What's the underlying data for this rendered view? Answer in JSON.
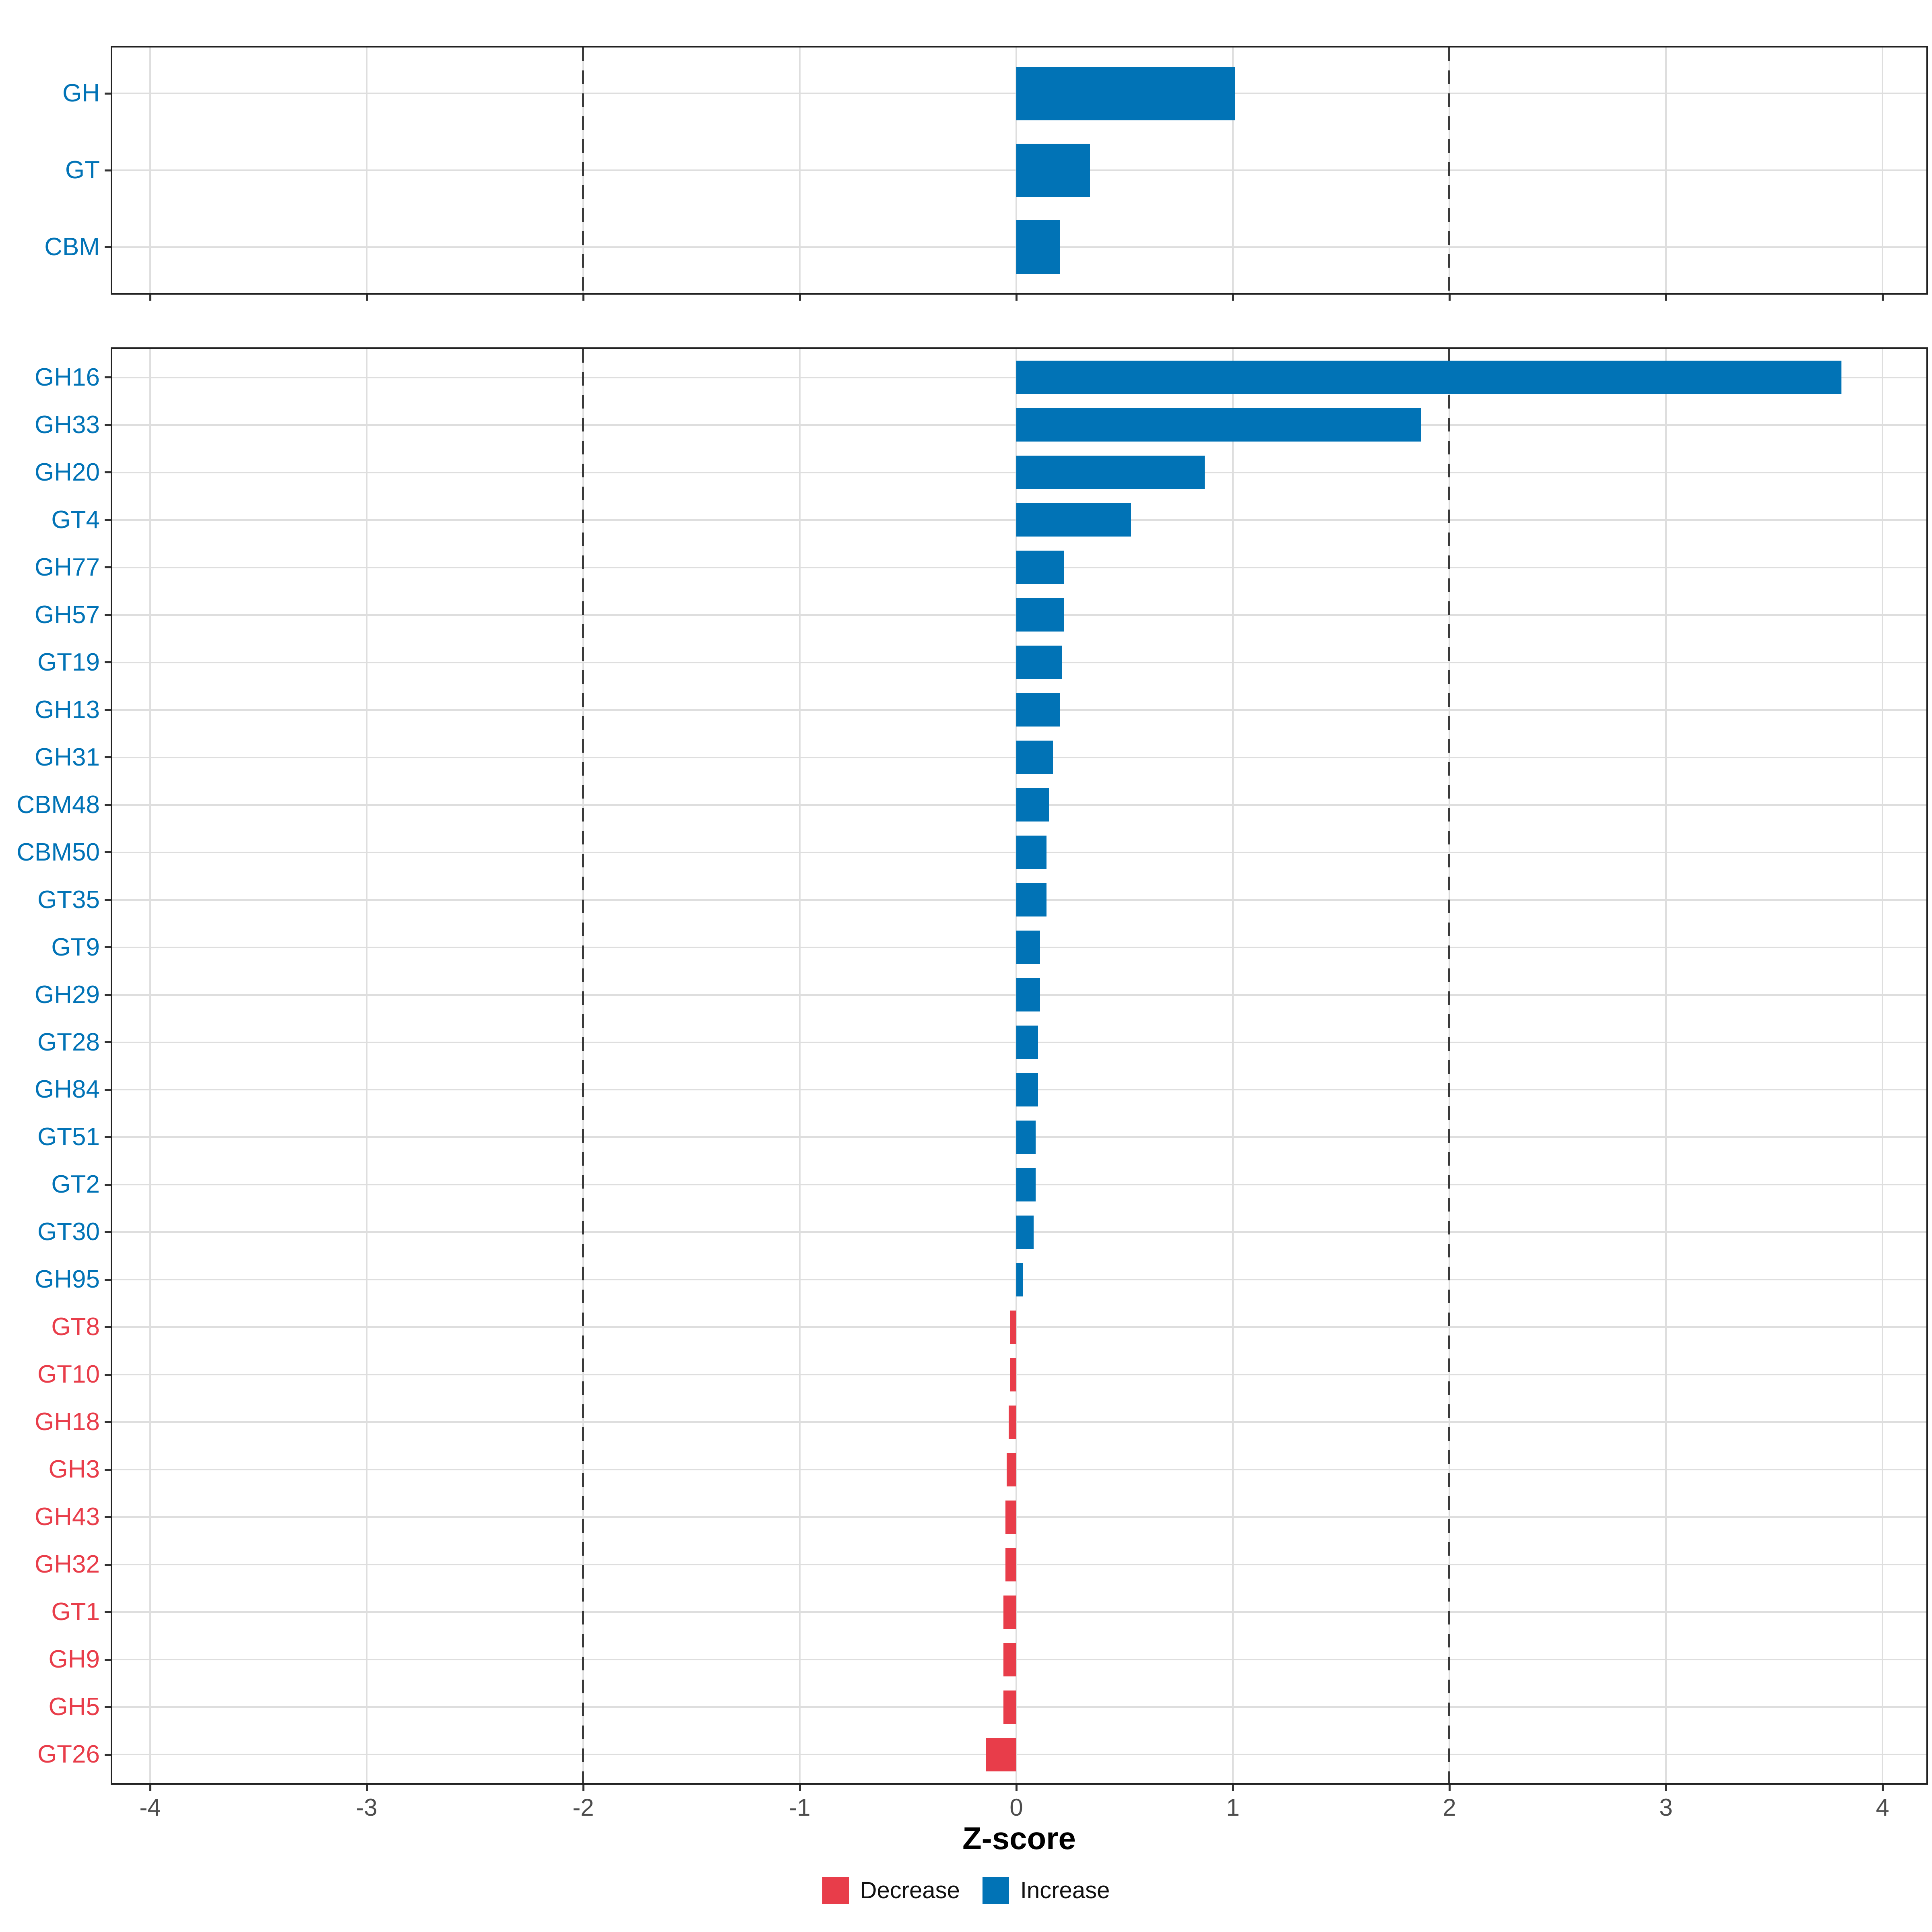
{
  "chart_data": [
    {
      "type": "bar",
      "orientation": "horizontal",
      "panel": "cazyme-classes-summary",
      "title": "",
      "xlabel": "",
      "categories": [
        "GH",
        "GT",
        "CBM"
      ],
      "values": [
        1.01,
        0.34,
        0.2
      ],
      "xlim": [
        -4.2,
        4.2
      ],
      "grid": "on",
      "bar_color_rule": "blue if value >= 0 (Increase), red if value < 0 (Decrease)"
    },
    {
      "type": "bar",
      "orientation": "horizontal",
      "panel": "cazyme-families",
      "title": "",
      "xlabel": "Z-score",
      "categories": [
        "GH16",
        "GH33",
        "GH20",
        "GT4",
        "GH77",
        "GH57",
        "GT19",
        "GH13",
        "GH31",
        "CBM48",
        "CBM50",
        "GT35",
        "GT9",
        "GH29",
        "GT28",
        "GH84",
        "GT51",
        "GT2",
        "GT30",
        "GH95",
        "GT8",
        "GT10",
        "GH18",
        "GH3",
        "GH43",
        "GH32",
        "GT1",
        "GH9",
        "GH5",
        "GT26"
      ],
      "values": [
        3.81,
        1.87,
        0.87,
        0.53,
        0.22,
        0.22,
        0.21,
        0.2,
        0.17,
        0.15,
        0.14,
        0.14,
        0.11,
        0.11,
        0.1,
        0.1,
        0.09,
        0.09,
        0.08,
        0.03,
        -0.03,
        -0.03,
        -0.035,
        -0.045,
        -0.05,
        -0.05,
        -0.06,
        -0.06,
        -0.06,
        -0.14
      ],
      "xlim": [
        -4.2,
        4.2
      ],
      "grid": "on",
      "bar_color_rule": "blue if value >= 0 (Increase), red if value < 0 (Decrease)"
    }
  ],
  "axis": {
    "label": "Z-score",
    "ticks": [
      -4,
      -3,
      -2,
      -1,
      0,
      1,
      2,
      3,
      4
    ],
    "dashed_at": [
      -2,
      2
    ]
  },
  "legend": {
    "position": "bottom-center",
    "items": [
      {
        "label": "Decrease",
        "color": "#E83D4A"
      },
      {
        "label": "Increase",
        "color": "#0173B6"
      }
    ]
  },
  "colors": {
    "increase": "#0173B6",
    "decrease": "#E83D4A",
    "grid": "#DEDEDE",
    "panel_border": "#222222",
    "tick": "#333333",
    "dashed_line": "#3A3A3A",
    "axis_text": "#4D4D4D"
  }
}
